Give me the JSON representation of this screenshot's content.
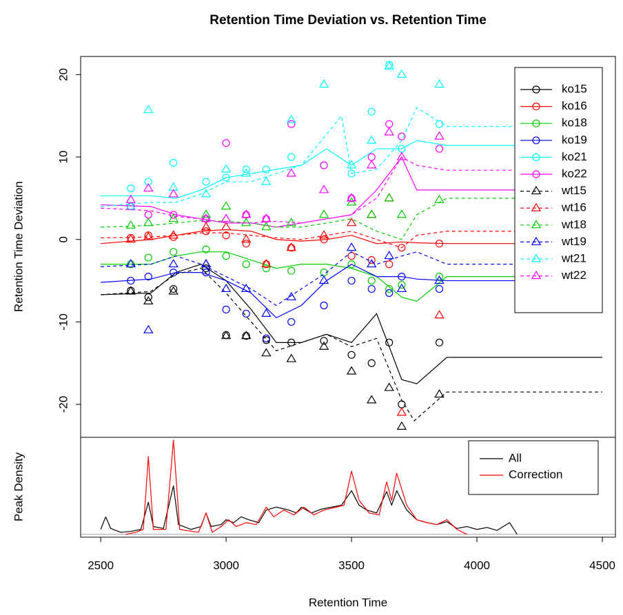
{
  "chart_data": [
    {
      "type": "scatter",
      "title": "Retention Time Deviation vs. Retention Time",
      "ylabel": "Retention Time Deviation",
      "xlim": [
        2420,
        4552
      ],
      "ylim": [
        -24.0,
        22.2
      ],
      "yticks": [
        -20,
        -10,
        0,
        10,
        20
      ],
      "legend": "top-right",
      "series": [
        {
          "name": "ko15",
          "color": "#000000",
          "marker": "circle",
          "linestyle": "solid",
          "x": [
            2620,
            2690,
            2790,
            2920,
            3000,
            3080,
            3160,
            3260,
            3390,
            3500,
            3580,
            3650,
            3700,
            3850
          ],
          "values": [
            -6.2,
            -7,
            -6,
            -3.5,
            -11.6,
            -11.7,
            -12.2,
            -12.5,
            -12.3,
            -14,
            -15,
            -12.5,
            -20,
            -12.5
          ],
          "fit_x": [
            2500,
            2700,
            2800,
            2900,
            3000,
            3100,
            3200,
            3300,
            3400,
            3500,
            3600,
            3700,
            3760,
            3880,
            4500
          ],
          "fit_values": [
            -6.7,
            -6.5,
            -4,
            -3,
            -5,
            -8.5,
            -12.5,
            -12.5,
            -11.5,
            -12.5,
            -9,
            -17,
            -17.5,
            -14.3,
            -14.3
          ]
        },
        {
          "name": "ko16",
          "color": "#ff0000",
          "marker": "circle",
          "linestyle": "solid",
          "x": [
            2620,
            2690,
            2790,
            2920,
            3000,
            3080,
            3160,
            3260,
            3390,
            3500,
            3580,
            3650,
            3700,
            3850
          ],
          "values": [
            0.2,
            0.5,
            0.3,
            1,
            0.5,
            -0.5,
            -3,
            -1,
            0,
            -2,
            -2.5,
            -3,
            -1,
            -0.5
          ],
          "fit_x": [
            2500,
            2700,
            2800,
            2900,
            3000,
            3100,
            3200,
            3300,
            3400,
            3500,
            3600,
            3700,
            3760,
            3880,
            4500
          ],
          "fit_values": [
            -0.5,
            0,
            0.5,
            1,
            1.2,
            1,
            0,
            -0.2,
            0,
            0.5,
            -0.5,
            -0.3,
            -0.4,
            -0.5,
            -0.5
          ]
        },
        {
          "name": "ko18",
          "color": "#00cd00",
          "marker": "circle",
          "linestyle": "solid",
          "x": [
            2620,
            2690,
            2790,
            2920,
            3000,
            3080,
            3160,
            3260,
            3390,
            3500,
            3580,
            3650,
            3700,
            3850
          ],
          "values": [
            -3,
            -2.2,
            -1.5,
            -1.2,
            -2,
            -3,
            -3.5,
            -3.8,
            -4,
            -3,
            -5,
            -6,
            -5.5,
            -4.5
          ],
          "fit_x": [
            2500,
            2700,
            2800,
            2900,
            3000,
            3100,
            3200,
            3300,
            3400,
            3500,
            3600,
            3700,
            3760,
            3880,
            4500
          ],
          "fit_values": [
            -3,
            -3,
            -2,
            -1.5,
            -1.5,
            -2.5,
            -3.5,
            -3,
            -3,
            -3.5,
            -4.5,
            -7,
            -7.5,
            -4.5,
            -4.5
          ]
        },
        {
          "name": "ko19",
          "color": "#0000ff",
          "marker": "circle",
          "linestyle": "solid",
          "x": [
            2620,
            2690,
            2790,
            2920,
            3000,
            3080,
            3160,
            3260,
            3390,
            3500,
            3580,
            3650,
            3700,
            3850
          ],
          "values": [
            -5,
            -4.5,
            -4,
            -4,
            -8.5,
            -9,
            -12,
            -10,
            -8,
            -5,
            -6,
            -6.5,
            -4.5,
            -6
          ],
          "fit_x": [
            2500,
            2700,
            2800,
            2900,
            3000,
            3100,
            3200,
            3300,
            3400,
            3500,
            3600,
            3700,
            3760,
            3880,
            4500
          ],
          "fit_values": [
            -5.2,
            -4.8,
            -4,
            -4,
            -5,
            -6.5,
            -9.5,
            -8,
            -5,
            -3,
            -4.5,
            -4.5,
            -4.8,
            -5,
            -5
          ]
        },
        {
          "name": "ko21",
          "color": "#00ffff",
          "marker": "circle",
          "linestyle": "solid",
          "x": [
            2620,
            2690,
            2790,
            2920,
            3000,
            3080,
            3160,
            3260,
            3390,
            3500,
            3580,
            3650,
            3700,
            3850
          ],
          "values": [
            6.2,
            7,
            9.3,
            7,
            7.5,
            8.5,
            8.5,
            10,
            9,
            8,
            15.5,
            21.2,
            11,
            14
          ],
          "fit_x": [
            2500,
            2700,
            2800,
            2900,
            3000,
            3100,
            3200,
            3300,
            3400,
            3500,
            3600,
            3700,
            3760,
            3880,
            4500
          ],
          "fit_values": [
            5.3,
            5.3,
            5,
            6,
            7.5,
            8,
            8.5,
            9,
            11,
            9,
            11,
            11,
            12,
            11.4,
            11.4
          ]
        },
        {
          "name": "ko22",
          "color": "#ff00ff",
          "marker": "circle",
          "linestyle": "solid",
          "x": [
            2620,
            2690,
            2790,
            2920,
            3000,
            3080,
            3160,
            3260,
            3390,
            3500,
            3580,
            3650,
            3700,
            3850
          ],
          "values": [
            4,
            3,
            3,
            2.5,
            11.7,
            3,
            2.5,
            14,
            9,
            5,
            10,
            14,
            12.5,
            11
          ],
          "fit_x": [
            2500,
            2700,
            2800,
            2900,
            3000,
            3100,
            3200,
            3300,
            3400,
            3500,
            3600,
            3700,
            3760,
            3880,
            4500
          ],
          "fit_values": [
            4.2,
            4,
            3,
            2.5,
            2,
            2,
            1.5,
            2,
            2.5,
            3,
            6,
            10,
            6,
            6,
            6
          ]
        },
        {
          "name": "wt15",
          "color": "#000000",
          "marker": "triangle",
          "linestyle": "dashed",
          "x": [
            2620,
            2690,
            2790,
            2920,
            3000,
            3080,
            3160,
            3260,
            3390,
            3500,
            3580,
            3650,
            3700,
            3850
          ],
          "values": [
            -6.3,
            -7.5,
            -6.3,
            -3,
            -11.7,
            -11.7,
            -13.8,
            -14.5,
            -13,
            -16,
            -19.5,
            -18,
            -22.7,
            -18.8
          ],
          "fit_x": [
            2500,
            2700,
            2800,
            2900,
            3000,
            3100,
            3200,
            3300,
            3400,
            3500,
            3600,
            3700,
            3750,
            3880,
            4500
          ],
          "fit_values": [
            -6.7,
            -6.3,
            -4.2,
            -3.5,
            -6.5,
            -10,
            -13.5,
            -12.5,
            -11.5,
            -13,
            -12,
            -19.5,
            -22,
            -18.5,
            -18.5
          ]
        },
        {
          "name": "wt16",
          "color": "#ff0000",
          "marker": "triangle",
          "linestyle": "dashed",
          "x": [
            2620,
            2690,
            2790,
            2920,
            3000,
            3080,
            3160,
            3260,
            3390,
            3500,
            3580,
            3650,
            3700,
            3850
          ],
          "values": [
            0,
            0.3,
            0.5,
            1.5,
            1.5,
            0,
            -3,
            -1,
            0.5,
            2,
            3,
            5,
            -21,
            -9.2
          ],
          "fit_x": [
            2500,
            2700,
            2800,
            2900,
            3000,
            3100,
            3200,
            3300,
            3400,
            3500,
            3600,
            3700,
            3760,
            3880,
            4500
          ],
          "fit_values": [
            0.2,
            0.3,
            0.5,
            0.8,
            0.8,
            0.5,
            0.2,
            0,
            0.5,
            1,
            0,
            -1,
            0.5,
            1,
            1
          ]
        },
        {
          "name": "wt18",
          "color": "#00cd00",
          "marker": "triangle",
          "linestyle": "dashed",
          "x": [
            2620,
            2690,
            2790,
            2920,
            3000,
            3080,
            3160,
            3260,
            3390,
            3500,
            3580,
            3650,
            3700,
            3850
          ],
          "values": [
            1.7,
            2,
            2.5,
            3,
            4,
            2,
            1.5,
            2,
            3,
            4.5,
            3,
            5,
            3,
            4.8
          ],
          "fit_x": [
            2500,
            2700,
            2800,
            2900,
            3000,
            3100,
            3200,
            3300,
            3400,
            3500,
            3600,
            3700,
            3760,
            3880,
            4500
          ],
          "fit_values": [
            1.5,
            1.7,
            2,
            2.3,
            2.2,
            2,
            1.5,
            1.5,
            2,
            2.5,
            1,
            0,
            3,
            5,
            5
          ]
        },
        {
          "name": "wt19",
          "color": "#0000ff",
          "marker": "triangle",
          "linestyle": "dashed",
          "x": [
            2620,
            2690,
            2790,
            2920,
            3000,
            3080,
            3160,
            3260,
            3390,
            3500,
            3580,
            3650,
            3700,
            3850
          ],
          "values": [
            -3,
            -11,
            -3,
            -3,
            -6,
            -6,
            -9,
            -7,
            -5,
            -1,
            -3,
            -2,
            -6,
            -5
          ],
          "fit_x": [
            2500,
            2700,
            2800,
            2900,
            3000,
            3100,
            3200,
            3300,
            3400,
            3500,
            3600,
            3700,
            3760,
            3880,
            4500
          ],
          "fit_values": [
            -3.3,
            -3,
            -2,
            -3,
            -4.5,
            -6,
            -8,
            -6,
            -4,
            -1.5,
            -3,
            -2,
            -1.5,
            -3,
            -3
          ]
        },
        {
          "name": "wt21",
          "color": "#00ffff",
          "marker": "triangle",
          "linestyle": "dashed",
          "x": [
            2620,
            2690,
            2790,
            2920,
            3000,
            3080,
            3160,
            3260,
            3390,
            3500,
            3580,
            3650,
            3700,
            3850
          ],
          "values": [
            4,
            15.7,
            6.3,
            5.5,
            8.5,
            8,
            7,
            14.5,
            18.8,
            9,
            12,
            21,
            20,
            18.8
          ],
          "fit_x": [
            2500,
            2700,
            2800,
            2900,
            3000,
            3100,
            3200,
            3300,
            3460,
            3500,
            3600,
            3700,
            3760,
            3880,
            4500
          ],
          "fit_values": [
            4,
            4.5,
            4.5,
            5.5,
            7,
            7,
            8,
            9,
            15,
            8,
            8.5,
            12,
            16,
            13.7,
            13.7
          ]
        },
        {
          "name": "wt22",
          "color": "#ff00ff",
          "marker": "triangle",
          "linestyle": "dashed",
          "x": [
            2620,
            2690,
            2790,
            2920,
            3000,
            3080,
            3160,
            3260,
            3390,
            3500,
            3580,
            3650,
            3700,
            3850
          ],
          "values": [
            4.8,
            6.2,
            5.5,
            2.5,
            2.5,
            3,
            2.5,
            8,
            6,
            5,
            9,
            13,
            10,
            12.5
          ],
          "fit_x": [
            2500,
            2700,
            2800,
            2900,
            3000,
            3100,
            3200,
            3300,
            3400,
            3500,
            3600,
            3700,
            3760,
            3880,
            4500
          ],
          "fit_values": [
            3.8,
            3.5,
            2.8,
            2.5,
            2,
            2,
            2.2,
            2,
            2.5,
            3,
            5,
            10,
            9,
            8.4,
            8.4
          ]
        }
      ]
    },
    {
      "type": "line",
      "xlabel": "Retention Time",
      "ylabel": "Peak Density",
      "xlim": [
        2420,
        4552
      ],
      "ylim": [
        -0.03,
        1.0
      ],
      "xticks": [
        2500,
        3000,
        3500,
        4000,
        4500
      ],
      "legend": "top-right",
      "series": [
        {
          "name": "All",
          "color": "#000000",
          "x": [
            2500,
            2520,
            2540,
            2580,
            2620,
            2660,
            2690,
            2710,
            2750,
            2790,
            2810,
            2860,
            2900,
            2920,
            2940,
            2980,
            3000,
            3030,
            3060,
            3090,
            3130,
            3160,
            3200,
            3250,
            3280,
            3300,
            3340,
            3380,
            3420,
            3460,
            3500,
            3530,
            3560,
            3600,
            3640,
            3660,
            3680,
            3720,
            3760,
            3800,
            3840,
            3880,
            3920,
            3960,
            4000,
            4040,
            4080,
            4130,
            4160
          ],
          "values": [
            0.05,
            0.18,
            0.06,
            0.02,
            0.03,
            0.05,
            0.33,
            0.08,
            0.06,
            0.5,
            0.1,
            0.05,
            0.08,
            0.22,
            0.08,
            0.1,
            0.15,
            0.12,
            0.18,
            0.15,
            0.12,
            0.25,
            0.28,
            0.25,
            0.22,
            0.28,
            0.22,
            0.26,
            0.28,
            0.3,
            0.45,
            0.3,
            0.25,
            0.22,
            0.44,
            0.3,
            0.45,
            0.25,
            0.15,
            0.12,
            0.1,
            0.13,
            0.06,
            0.08,
            0.05,
            0.07,
            0.04,
            0.12,
            0
          ]
        },
        {
          "name": "Correction",
          "color": "#ff0000",
          "x": [
            2600,
            2640,
            2670,
            2690,
            2710,
            2760,
            2790,
            2815,
            2890,
            2920,
            2945,
            2980,
            3010,
            3040,
            3080,
            3120,
            3160,
            3190,
            3230,
            3270,
            3310,
            3350,
            3390,
            3440,
            3470,
            3500,
            3530,
            3570,
            3610,
            3640,
            3660,
            3680,
            3720,
            3760,
            3800,
            3840,
            3880,
            3920,
            3960
          ],
          "values": [
            0,
            0.02,
            0.05,
            0.8,
            0.05,
            0.05,
            0.97,
            0.05,
            0.02,
            0.22,
            0.02,
            0.08,
            0.15,
            0.08,
            0.12,
            0.1,
            0.28,
            0.18,
            0.25,
            0.2,
            0.28,
            0.2,
            0.25,
            0.28,
            0.3,
            0.65,
            0.35,
            0.22,
            0.2,
            0.54,
            0.35,
            0.63,
            0.3,
            0.15,
            0.12,
            0.1,
            0.15,
            0.05,
            0
          ]
        }
      ]
    }
  ]
}
